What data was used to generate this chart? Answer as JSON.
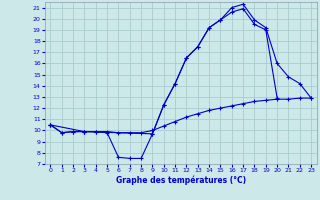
{
  "title": "Graphe des températures (°C)",
  "background_color": "#cce8e8",
  "grid_color": "#aacccc",
  "line_color": "#0000cc",
  "xlim": [
    -0.5,
    23.5
  ],
  "ylim": [
    7,
    21.5
  ],
  "xticks": [
    0,
    1,
    2,
    3,
    4,
    5,
    6,
    7,
    8,
    9,
    10,
    11,
    12,
    13,
    14,
    15,
    16,
    17,
    18,
    19,
    20,
    21,
    22,
    23
  ],
  "yticks": [
    7,
    8,
    9,
    10,
    11,
    12,
    13,
    14,
    15,
    16,
    17,
    18,
    19,
    20,
    21
  ],
  "series1_x": [
    0,
    1,
    2,
    3,
    4,
    5,
    6,
    7,
    8,
    9,
    10,
    11,
    12,
    13,
    14,
    15,
    16,
    17,
    18,
    19,
    20,
    21,
    22,
    23
  ],
  "series1_y": [
    10.5,
    9.8,
    9.9,
    9.9,
    9.9,
    9.8,
    7.6,
    7.5,
    7.5,
    9.7,
    12.3,
    14.2,
    16.5,
    17.5,
    19.2,
    19.9,
    21.0,
    21.3,
    19.9,
    19.2,
    16.0,
    14.8,
    14.2,
    12.9
  ],
  "series2_x": [
    0,
    3,
    9,
    10,
    11,
    12,
    13,
    14,
    15,
    16,
    17,
    18,
    19,
    20
  ],
  "series2_y": [
    10.5,
    9.9,
    9.7,
    12.3,
    14.2,
    16.5,
    17.5,
    19.2,
    19.9,
    20.6,
    20.9,
    19.5,
    19.0,
    12.9
  ],
  "series3_x": [
    0,
    1,
    2,
    3,
    4,
    5,
    6,
    7,
    8,
    9,
    10,
    11,
    12,
    13,
    14,
    15,
    16,
    17,
    18,
    19,
    20,
    21,
    22,
    23
  ],
  "series3_y": [
    10.5,
    9.8,
    9.9,
    9.9,
    9.9,
    9.9,
    9.8,
    9.8,
    9.8,
    10.0,
    10.4,
    10.8,
    11.2,
    11.5,
    11.8,
    12.0,
    12.2,
    12.4,
    12.6,
    12.7,
    12.8,
    12.8,
    12.9,
    12.9
  ]
}
